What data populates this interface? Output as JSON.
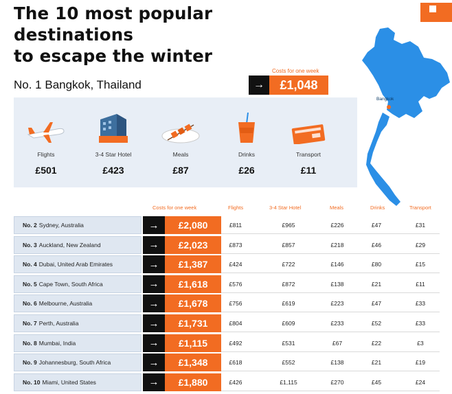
{
  "title_line1": "The 10 most popular destinations",
  "title_line2": "to escape the winter",
  "accent_color": "#f26c22",
  "map": {
    "label": "Bangkok",
    "icon": "thailand-map"
  },
  "top": {
    "label": "Costs for one week",
    "destination": "No. 1 Bangkok, Thailand",
    "cost": "£1,048",
    "categories": [
      {
        "label": "Flights",
        "value": "£501",
        "icon": "airplane-icon"
      },
      {
        "label": "3-4 Star Hotel",
        "value": "£423",
        "icon": "hotel-icon"
      },
      {
        "label": "Meals",
        "value": "£87",
        "icon": "meals-icon"
      },
      {
        "label": "Drinks",
        "value": "£26",
        "icon": "drink-icon"
      },
      {
        "label": "Transport",
        "value": "£11",
        "icon": "ticket-icon"
      }
    ]
  },
  "table": {
    "headers": {
      "cost": "Costs for one week",
      "flights": "Flights",
      "hotel": "3-4 Star Hotel",
      "meals": "Meals",
      "drinks": "Drinks",
      "transport": "Transport"
    },
    "rows": [
      {
        "rank": "No. 2",
        "city": "Sydney, Australia",
        "cost": "£2,080",
        "flights": "£811",
        "hotel": "£965",
        "meals": "£226",
        "drinks": "£47",
        "transport": "£31"
      },
      {
        "rank": "No. 3",
        "city": "Auckland, New Zealand",
        "cost": "£2,023",
        "flights": "£873",
        "hotel": "£857",
        "meals": "£218",
        "drinks": "£46",
        "transport": "£29"
      },
      {
        "rank": "No. 4",
        "city": "Dubai, United Arab Emirates",
        "cost": "£1,387",
        "flights": "£424",
        "hotel": "£722",
        "meals": "£146",
        "drinks": "£80",
        "transport": "£15"
      },
      {
        "rank": "No. 5",
        "city": "Cape Town, South Africa",
        "cost": "£1,618",
        "flights": "£576",
        "hotel": "£872",
        "meals": "£138",
        "drinks": "£21",
        "transport": "£11"
      },
      {
        "rank": "No. 6",
        "city": "Melbourne, Australia",
        "cost": "£1,678",
        "flights": "£756",
        "hotel": "£619",
        "meals": "£223",
        "drinks": "£47",
        "transport": "£33"
      },
      {
        "rank": "No. 7",
        "city": "Perth, Australia",
        "cost": "£1,731",
        "flights": "£804",
        "hotel": "£609",
        "meals": "£233",
        "drinks": "£52",
        "transport": "£33"
      },
      {
        "rank": "No. 8",
        "city": "Mumbai, India",
        "cost": "£1,115",
        "flights": "£492",
        "hotel": "£531",
        "meals": "£67",
        "drinks": "£22",
        "transport": "£3"
      },
      {
        "rank": "No. 9",
        "city": "Johannesburg, South Africa",
        "cost": "£1,348",
        "flights": "£618",
        "hotel": "£552",
        "meals": "£138",
        "drinks": "£21",
        "transport": "£19"
      },
      {
        "rank": "No. 10",
        "city": "Miami, United States",
        "cost": "£1,880",
        "flights": "£426",
        "hotel": "£1,115",
        "meals": "£270",
        "drinks": "£45",
        "transport": "£24"
      }
    ]
  }
}
